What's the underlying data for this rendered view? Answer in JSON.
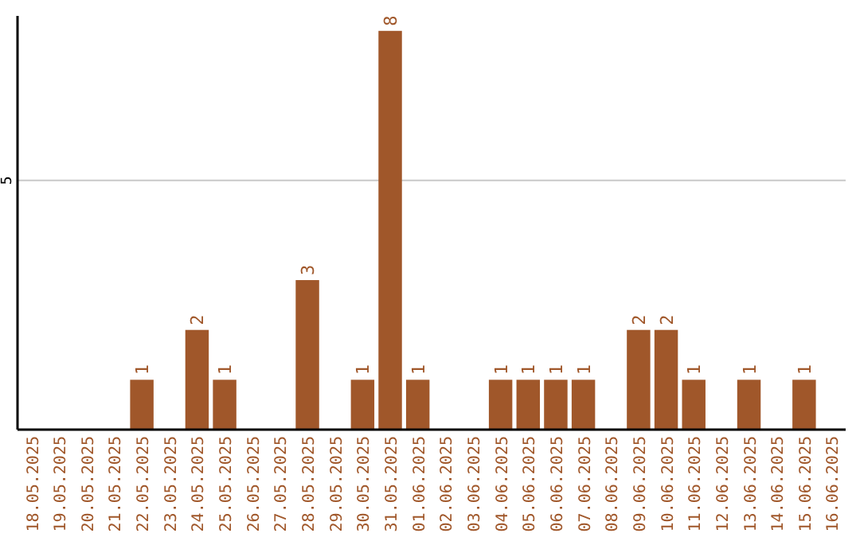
{
  "chart_data": {
    "type": "bar",
    "categories": [
      "18.05.2025",
      "19.05.2025",
      "20.05.2025",
      "21.05.2025",
      "22.05.2025",
      "23.05.2025",
      "24.05.2025",
      "25.05.2025",
      "26.05.2025",
      "27.05.2025",
      "28.05.2025",
      "29.05.2025",
      "30.05.2025",
      "31.05.2025",
      "01.06.2025",
      "02.06.2025",
      "03.06.2025",
      "04.06.2025",
      "05.06.2025",
      "06.06.2025",
      "07.06.2025",
      "08.06.2025",
      "09.06.2025",
      "10.06.2025",
      "11.06.2025",
      "12.06.2025",
      "13.06.2025",
      "14.06.2025",
      "15.06.2025",
      "16.06.2025"
    ],
    "values": [
      0,
      0,
      0,
      0,
      1,
      0,
      2,
      1,
      0,
      0,
      3,
      0,
      1,
      8,
      1,
      0,
      0,
      1,
      1,
      1,
      1,
      0,
      2,
      2,
      1,
      0,
      1,
      0,
      1,
      0
    ],
    "value_labels": [
      null,
      null,
      null,
      null,
      "1",
      null,
      "2",
      "1",
      null,
      null,
      "3",
      null,
      "1",
      "8",
      "1",
      null,
      null,
      "1",
      "1",
      "1",
      "1",
      null,
      "2",
      "2",
      "1",
      null,
      "1",
      null,
      "1",
      null
    ],
    "color": "#a0572a",
    "ylim": [
      0,
      8.3
    ],
    "yticks": [
      5
    ],
    "grid": "y"
  }
}
